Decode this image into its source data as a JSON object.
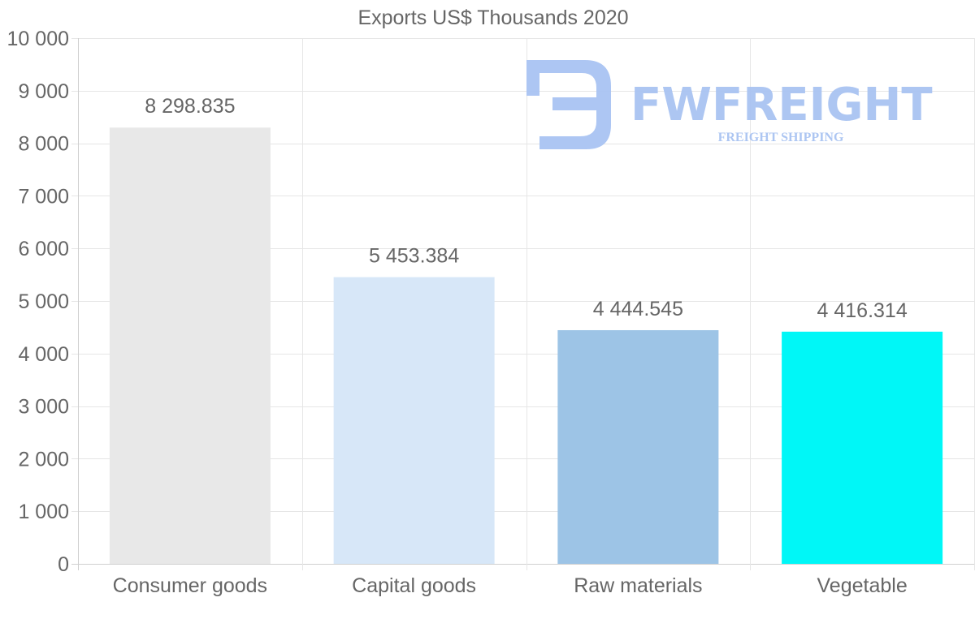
{
  "chart_data": {
    "type": "bar",
    "title": "Exports US$ Thousands 2020",
    "categories": [
      "Consumer goods",
      "Capital goods",
      "Raw materials",
      "Vegetable"
    ],
    "values": [
      8298.835,
      5453.384,
      4444.545,
      4416.314
    ],
    "value_labels": [
      "8 298.835",
      "5 453.384",
      "4 444.545",
      "4 416.314"
    ],
    "colors": [
      "#e8e8e8",
      "#d7e7f8",
      "#9dc4e6",
      "#00f7f7"
    ],
    "ylim": [
      0,
      10000
    ],
    "yticks": [
      0,
      1000,
      2000,
      3000,
      4000,
      5000,
      6000,
      7000,
      8000,
      9000,
      10000
    ],
    "ytick_labels": [
      "0",
      "1 000",
      "2 000",
      "3 000",
      "4 000",
      "5 000",
      "6 000",
      "7 000",
      "8 000",
      "9 000",
      "10 000"
    ],
    "xlabel": "",
    "ylabel": "",
    "grid": true,
    "legend": "none"
  },
  "watermark": {
    "brand": "FWFREIGHT",
    "tagline": "FREIGHT SHIPPING",
    "icon": "fwfreight-logo-icon"
  }
}
